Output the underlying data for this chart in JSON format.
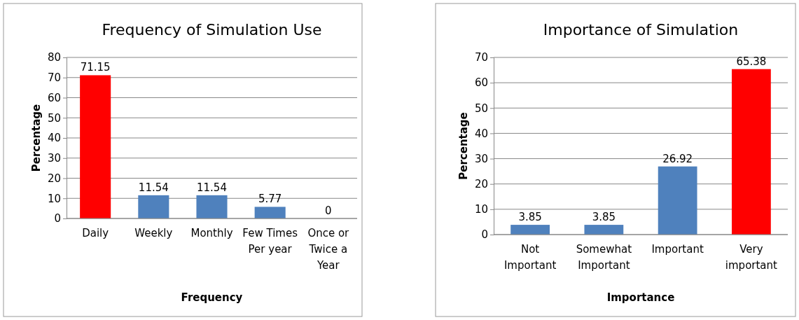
{
  "chart_data": [
    {
      "type": "bar",
      "title": "Frequency of Simulation Use",
      "xlabel": "Frequency",
      "ylabel": "Percentage",
      "categories": [
        "Daily",
        "Weekly",
        "Monthly",
        "Few Times Per year",
        "Once or Twice a Year"
      ],
      "values": [
        71.15,
        11.54,
        11.54,
        5.77,
        0
      ],
      "colors": [
        "#ff0000",
        "#4f81bd",
        "#4f81bd",
        "#4f81bd",
        "#4f81bd"
      ],
      "ylim": [
        0,
        80
      ],
      "yticks": [
        0,
        10,
        20,
        30,
        40,
        50,
        60,
        70,
        80
      ],
      "grid": "y",
      "data_labels": true
    },
    {
      "type": "bar",
      "title": "Importance of Simulation",
      "xlabel": "Importance",
      "ylabel": "Percentage",
      "categories": [
        "Not Important",
        "Somewhat Important",
        "Important",
        "Very important"
      ],
      "values": [
        3.85,
        3.85,
        26.92,
        65.38
      ],
      "colors": [
        "#4f81bd",
        "#4f81bd",
        "#4f81bd",
        "#ff0000"
      ],
      "ylim": [
        0,
        70
      ],
      "yticks": [
        0,
        10,
        20,
        30,
        40,
        50,
        60,
        70
      ],
      "grid": "y",
      "data_labels": true
    }
  ]
}
